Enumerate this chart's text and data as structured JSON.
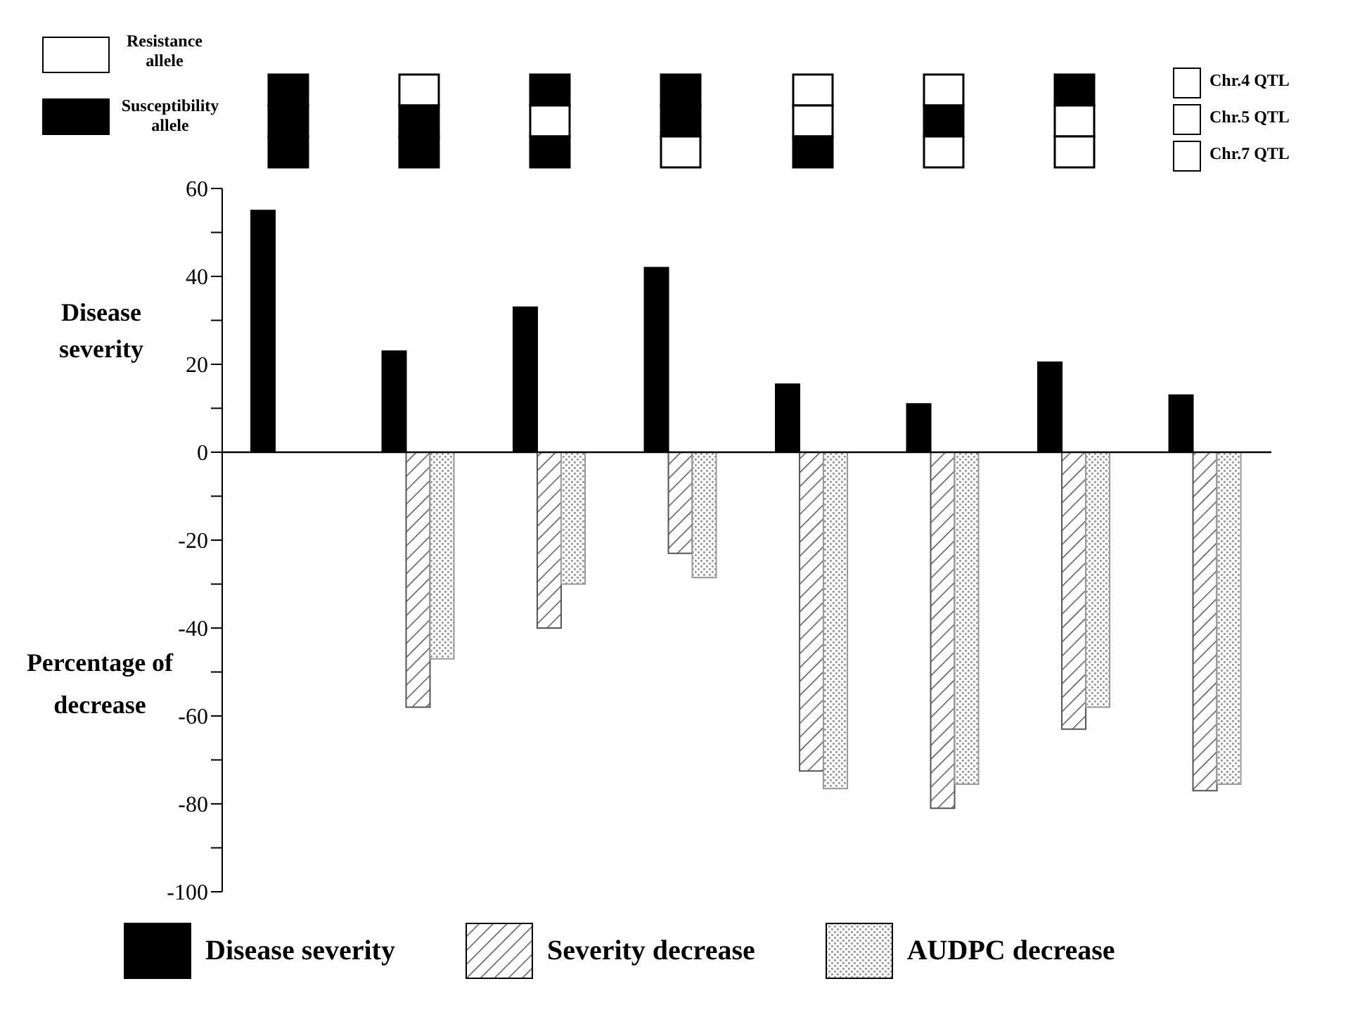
{
  "chart_data": {
    "type": "bar",
    "ylabel": "Disease severity",
    "categories": [
      null,
      null,
      null,
      null,
      null,
      null,
      null,
      null
    ],
    "series": [
      {
        "name": "Disease severity",
        "color": "#000000",
        "values": [
          55,
          23,
          33,
          42,
          15.5,
          11,
          20.5,
          13
        ]
      },
      {
        "name": "Severity decrease",
        "color": "#555555",
        "values": [
          null,
          -58,
          -40,
          -23,
          -72.5,
          -81,
          -63,
          -77
        ]
      },
      {
        "name": "AUDPC decrease",
        "color": "#999999",
        "values": [
          null,
          -47,
          -30,
          -28.5,
          -76.5,
          -75.5,
          -58,
          -75.5
        ]
      }
    ],
    "ylim": [
      -100,
      60
    ],
    "yticks": [
      60,
      {
        "value": 50,
        "label": null
      },
      40,
      {
        "value": 30,
        "label": null
      },
      20,
      {
        "value": 10,
        "label": null
      },
      0,
      {
        "value": -10,
        "label": null
      },
      -20,
      {
        "value": -30,
        "label": null
      },
      -40,
      {
        "value": -50,
        "label": null
      },
      -60,
      {
        "value": -70,
        "label": null
      },
      -80,
      {
        "value": -90,
        "label": null
      },
      -100
    ],
    "ref_lines": [
      {
        "axis": "y",
        "value": 0
      }
    ],
    "annotations": [
      "Percentage of decrease",
      "Resistance allele",
      "Susceptibility allele",
      "Chr.4 QTL",
      "Chr.5 QTL",
      "Chr.7 QTL"
    ],
    "grid": false,
    "legend": "bottom"
  }
}
